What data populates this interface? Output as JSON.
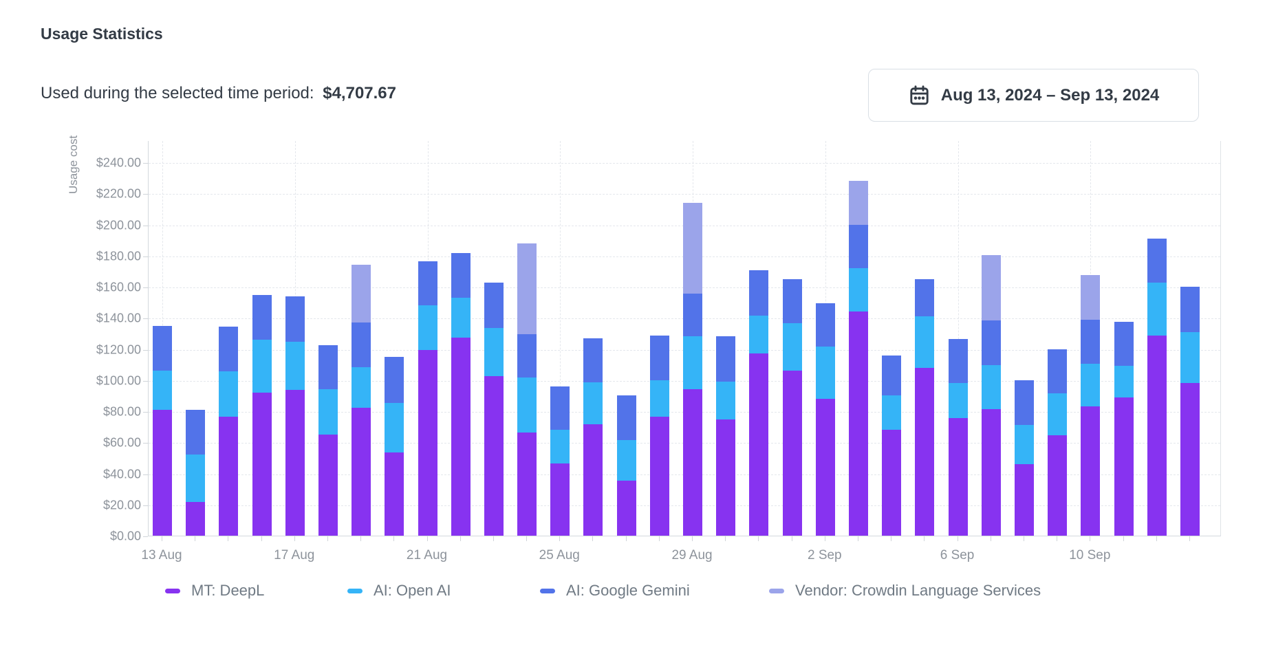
{
  "header": {
    "title": "Usage Statistics",
    "subtitle_label": "Used during the selected time period:",
    "subtitle_value": "$4,707.67"
  },
  "date_picker": {
    "label": "Aug 13, 2024 – Sep 13, 2024"
  },
  "chart_data": {
    "type": "bar",
    "stacked": true,
    "ylabel": "Usage cost",
    "ylim": [
      0,
      252
    ],
    "grid": true,
    "legend_position": "bottom",
    "y_tick_step": 20,
    "y_tick_labels": [
      "$0.00",
      "$20.00",
      "$40.00",
      "$60.00",
      "$80.00",
      "$100.00",
      "$120.00",
      "$140.00",
      "$160.00",
      "$180.00",
      "$200.00",
      "$220.00",
      "$240.00"
    ],
    "categories": [
      "13 Aug",
      "14 Aug",
      "15 Aug",
      "16 Aug",
      "17 Aug",
      "18 Aug",
      "19 Aug",
      "20 Aug",
      "21 Aug",
      "22 Aug",
      "23 Aug",
      "24 Aug",
      "25 Aug",
      "26 Aug",
      "27 Aug",
      "28 Aug",
      "29 Aug",
      "30 Aug",
      "31 Aug",
      "1 Sep",
      "2 Sep",
      "3 Sep",
      "4 Sep",
      "5 Sep",
      "6 Sep",
      "7 Sep",
      "8 Sep",
      "9 Sep",
      "10 Sep",
      "11 Sep",
      "12 Sep",
      "13 Sep"
    ],
    "x_tick_indices": [
      0,
      4,
      8,
      12,
      16,
      20,
      24,
      28
    ],
    "x_tick_labels": [
      "13 Aug",
      "17 Aug",
      "21 Aug",
      "25 Aug",
      "29 Aug",
      "2 Sep",
      "6 Sep",
      "10 Sep"
    ],
    "series": [
      {
        "name": "MT: DeepL",
        "color": "#8733f0",
        "values": [
          81,
          21.5,
          76.5,
          92,
          93.5,
          65,
          82,
          53.5,
          119.5,
          127.5,
          102.5,
          66.5,
          46.5,
          71.5,
          35.5,
          76.5,
          94,
          74.5,
          117,
          106,
          88,
          144,
          68,
          108,
          75.5,
          81.5,
          46,
          64.5,
          83,
          89,
          128.5,
          98
        ]
      },
      {
        "name": "AI: Open AI",
        "color": "#35b4f7",
        "values": [
          25,
          30.5,
          29,
          34,
          31,
          29,
          26.5,
          32,
          28.5,
          25.5,
          31,
          35,
          21.5,
          27,
          26,
          23.5,
          34,
          24.5,
          24.5,
          30.5,
          33.5,
          28,
          22,
          33,
          22.5,
          28,
          25,
          27,
          27.5,
          20,
          34,
          33
        ]
      },
      {
        "name": "AI: Google Gemini",
        "color": "#5273e9",
        "values": [
          29,
          29,
          29,
          28.5,
          29.5,
          28.5,
          28.5,
          29.5,
          28.5,
          28.5,
          29,
          28,
          28,
          28.5,
          28.5,
          28.5,
          27.5,
          29,
          29,
          28.5,
          28,
          28,
          26,
          24,
          28.5,
          29,
          29,
          28.5,
          28.5,
          28.5,
          28.5,
          29
        ]
      },
      {
        "name": "Vendor: Crowdin Language Services",
        "color": "#9ba4ea",
        "values": [
          0,
          0,
          0,
          0,
          0,
          0,
          37,
          0,
          0,
          0,
          0,
          58.5,
          0,
          0,
          0,
          0,
          58.5,
          0,
          0,
          0,
          0,
          28,
          0,
          0,
          0,
          42,
          0,
          0,
          28.5,
          0,
          0,
          0
        ]
      }
    ]
  }
}
